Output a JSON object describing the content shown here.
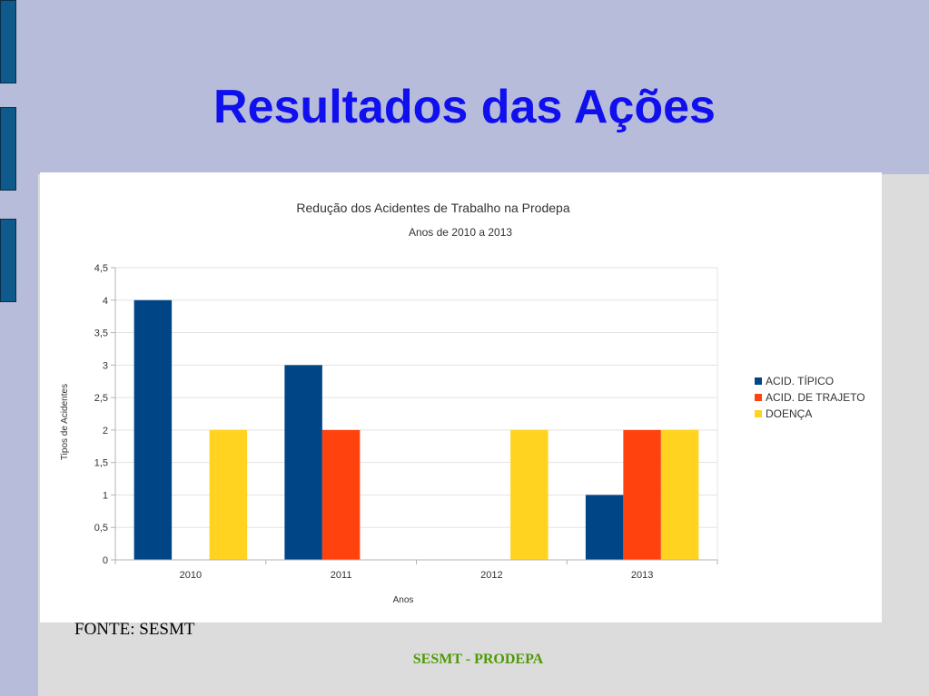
{
  "slide": {
    "title": "Resultados das Ações",
    "source": "FONTE: SESMT",
    "footer": "SESMT - PRODEPA"
  },
  "colors": {
    "tab": "#0e5a8a",
    "title": "#1010ee",
    "footer": "#4e9a06"
  },
  "chart_data": {
    "type": "bar",
    "title": "Redução dos Acidentes de Trabalho na Prodepa",
    "subtitle": "Anos de 2010 a 2013",
    "xlabel": "Anos",
    "ylabel": "Tipos de Acidentes",
    "categories": [
      "2010",
      "2011",
      "2012",
      "2013"
    ],
    "ylim": [
      0,
      4.5
    ],
    "yticks": [
      "0",
      "0,5",
      "1",
      "1,5",
      "2",
      "2,5",
      "3",
      "3,5",
      "4",
      "4,5"
    ],
    "grid": true,
    "legend_position": "right",
    "series": [
      {
        "name": "ACID. TÍPICO",
        "color": "#004586",
        "values": [
          4,
          3,
          0,
          1
        ]
      },
      {
        "name": "ACID. DE TRAJETO",
        "color": "#ff420e",
        "values": [
          0,
          2,
          0,
          2
        ]
      },
      {
        "name": "DOENÇA",
        "color": "#ffd320",
        "values": [
          2,
          0,
          2,
          2
        ]
      }
    ]
  }
}
